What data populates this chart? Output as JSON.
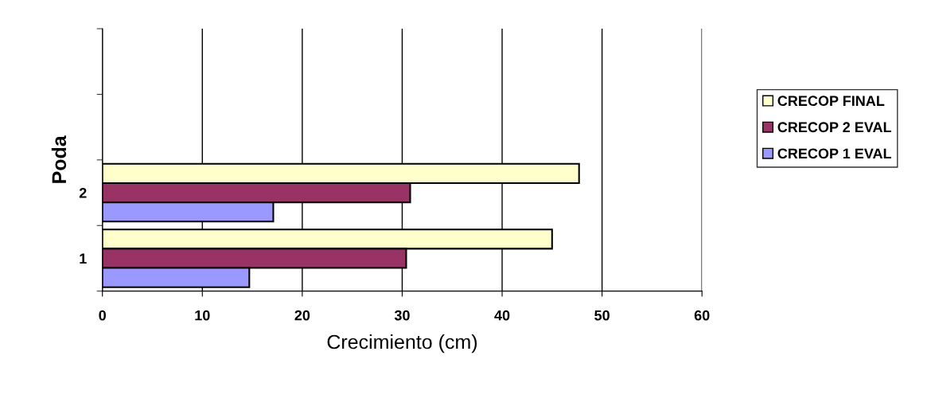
{
  "chart_data": {
    "type": "bar",
    "orientation": "horizontal",
    "xlabel": "Crecimiento (cm)",
    "ylabel": "Poda",
    "categories": [
      null,
      null,
      "2",
      "1"
    ],
    "series": [
      {
        "name": "CRECOP FINAL",
        "color": "#ffffcc",
        "values": [
          null,
          null,
          47.7,
          45.0
        ]
      },
      {
        "name": "CRECOP 2 EVAL",
        "color": "#993366",
        "values": [
          null,
          null,
          30.8,
          30.4
        ]
      },
      {
        "name": "CRECOP 1 EVAL",
        "color": "#9999ff",
        "values": [
          null,
          null,
          17.1,
          14.7
        ]
      }
    ],
    "xlim": [
      0,
      60
    ],
    "xticks": [
      0,
      10,
      20,
      30,
      40,
      50,
      60
    ],
    "grid": "x",
    "legend": "right"
  }
}
